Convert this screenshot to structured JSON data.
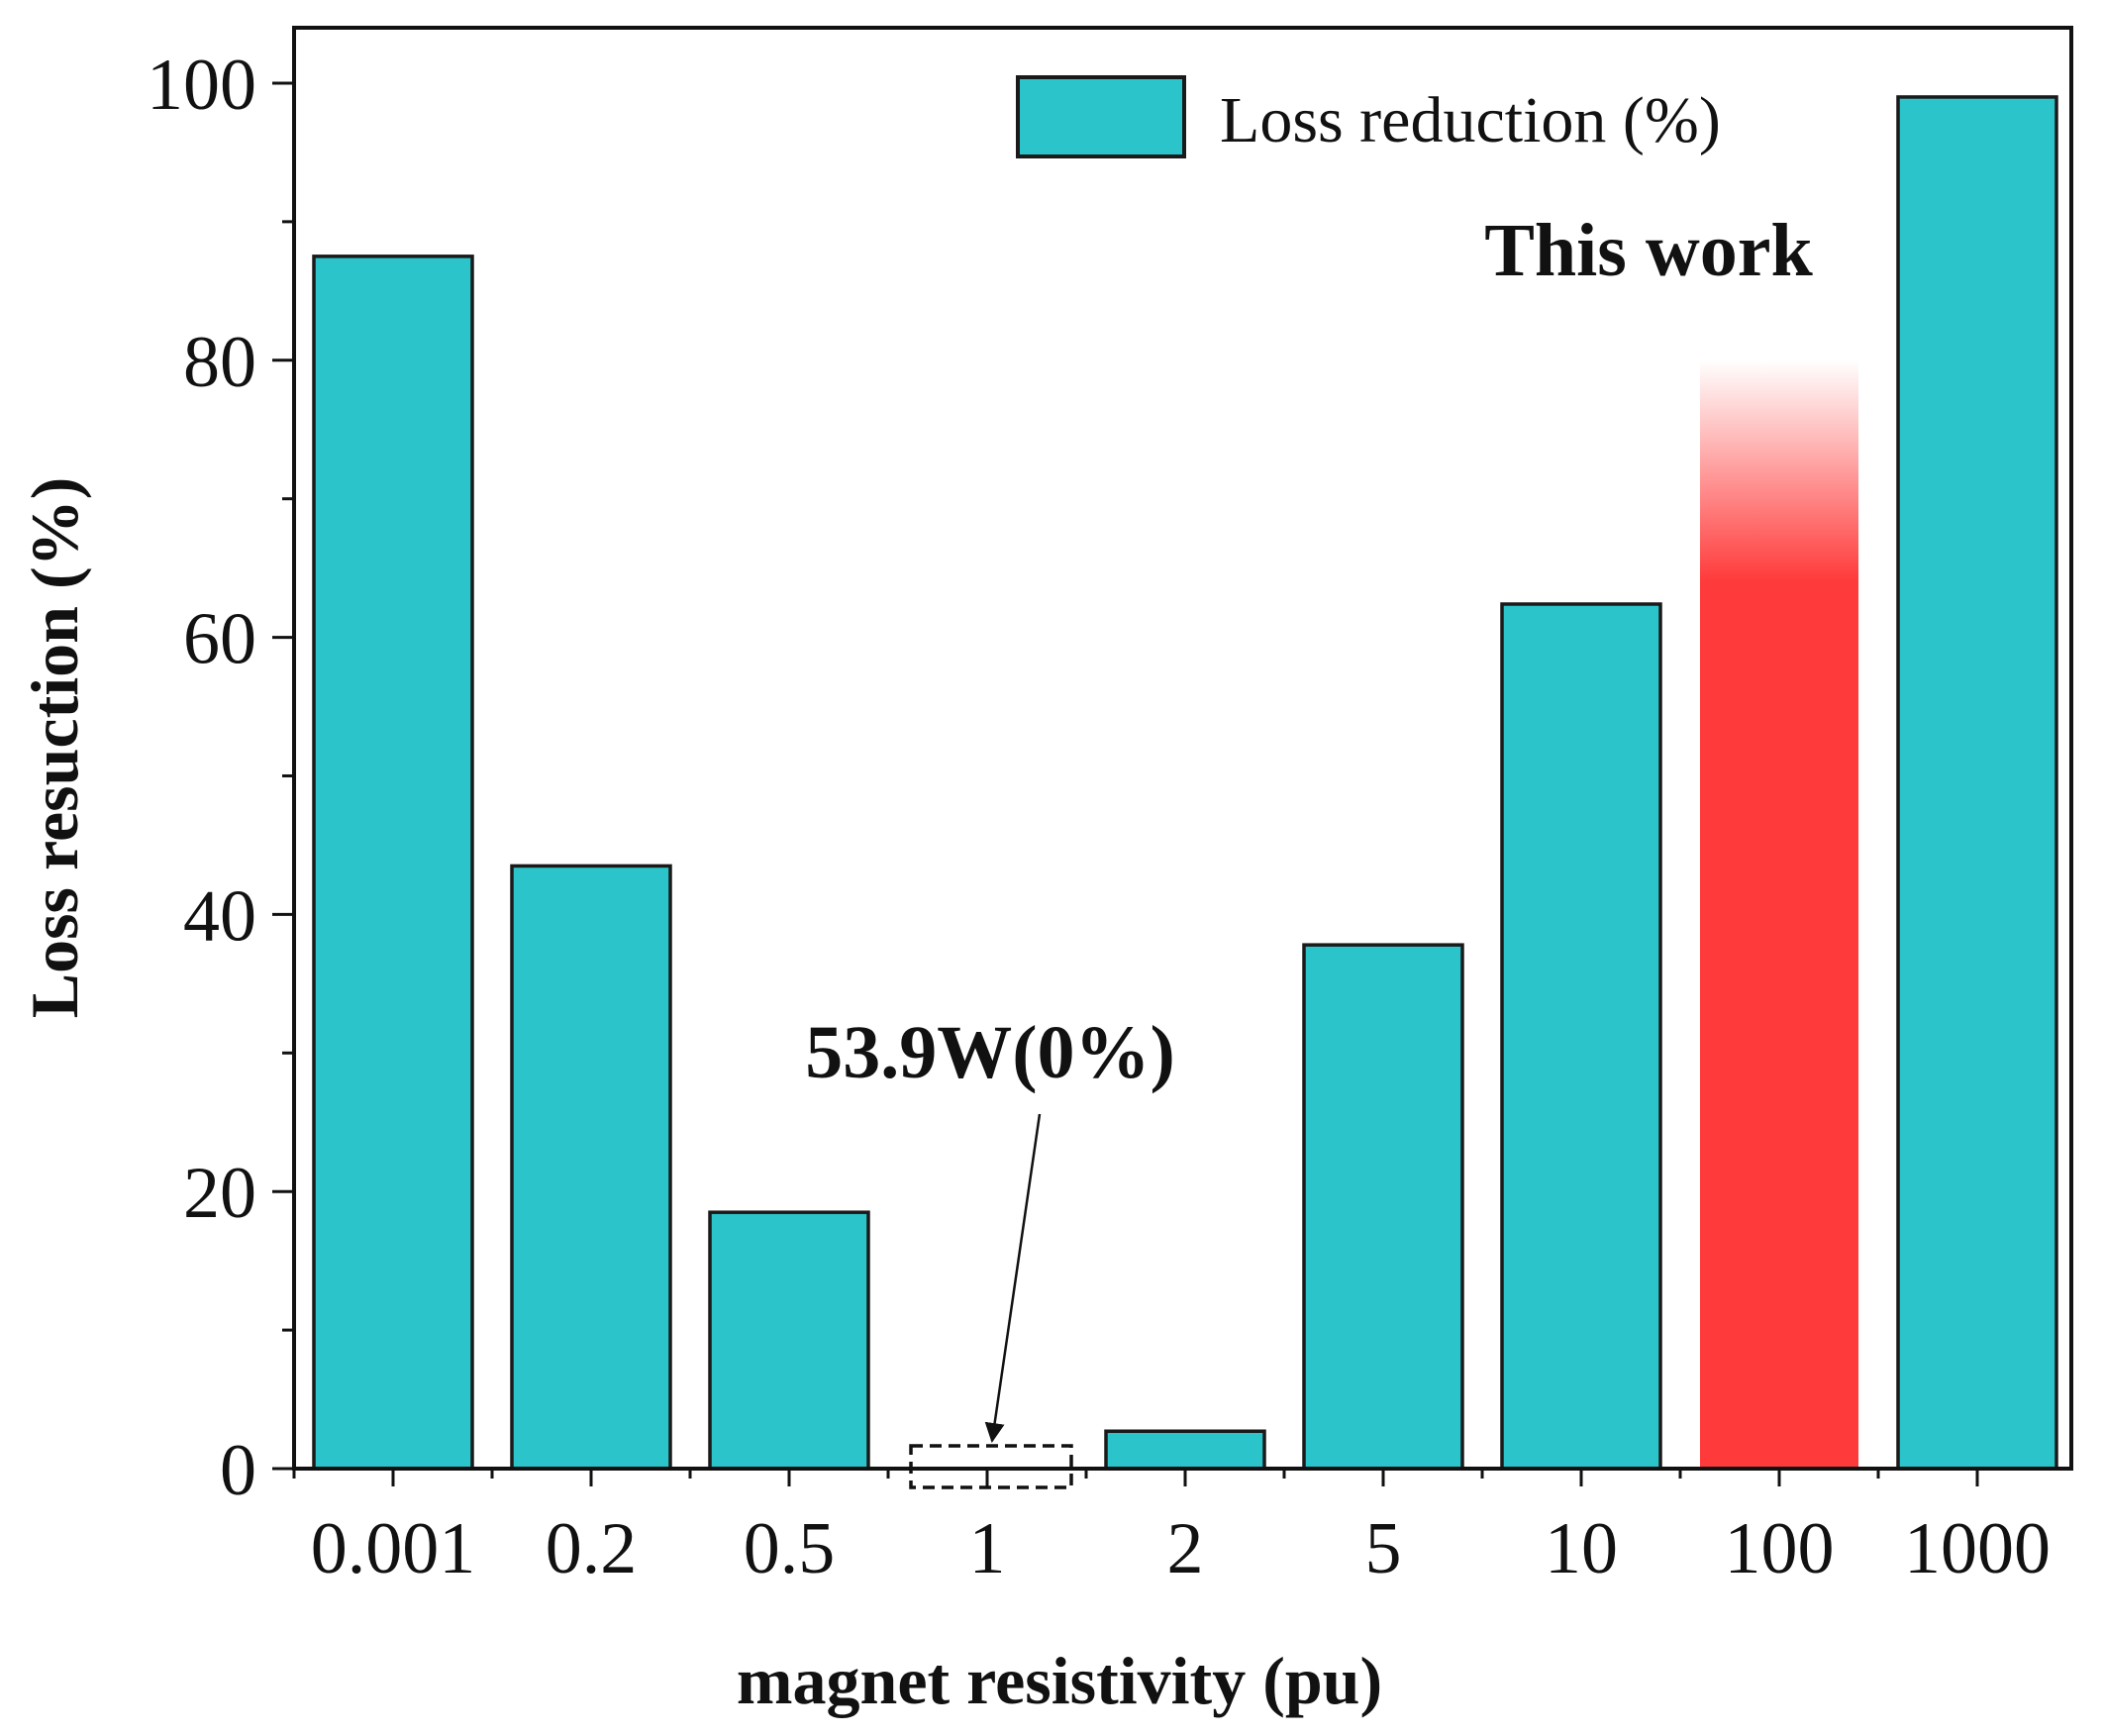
{
  "chart_data": {
    "type": "bar",
    "title": "",
    "xlabel": "magnet resistivity (pu)",
    "ylabel": "Loss resuction (%)",
    "categories": [
      "0.001",
      "0.2",
      "0.5",
      "1",
      "2",
      "5",
      "10",
      "100",
      "1000"
    ],
    "values": [
      87.5,
      43.5,
      18.5,
      0,
      2.7,
      37.8,
      62.4,
      80,
      99
    ],
    "ylim": [
      0,
      104
    ],
    "yticks": [
      0,
      20,
      40,
      60,
      80,
      100
    ],
    "grid": false,
    "legend": {
      "position": "top-right",
      "entries": [
        "Loss reduction (%)"
      ]
    },
    "highlight_category": "100",
    "annotations": [
      {
        "text": "This work",
        "target": "100"
      },
      {
        "text": "53.9W(0%)",
        "target": "1"
      }
    ]
  },
  "colors": {
    "bar": "#2AC4CA",
    "bar_edge": "#1a1a1a",
    "highlight": "#FF3A3A",
    "axis": "#111111"
  }
}
